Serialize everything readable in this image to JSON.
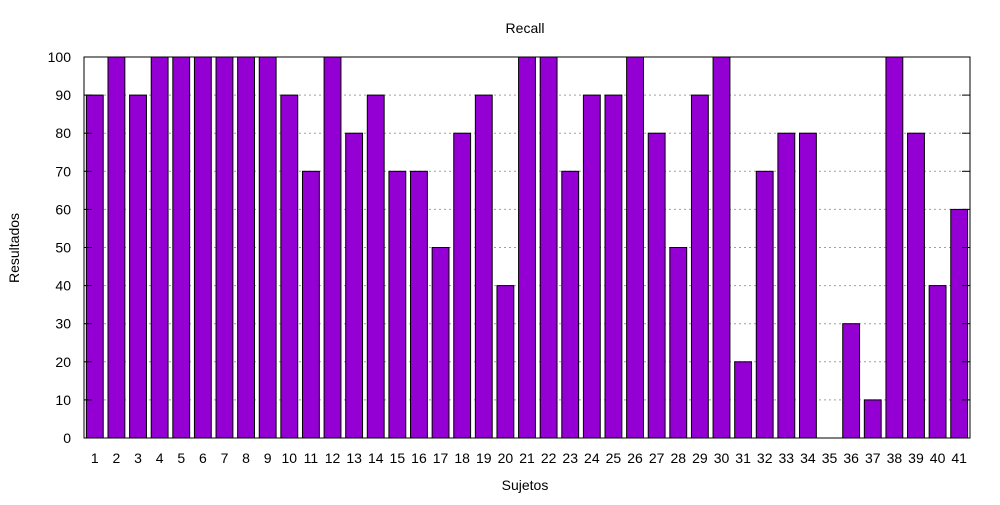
{
  "chart_data": {
    "type": "bar",
    "title": "Recall",
    "xlabel": "Sujetos",
    "ylabel": "Resultados",
    "categories": [
      "1",
      "2",
      "3",
      "4",
      "5",
      "6",
      "7",
      "8",
      "9",
      "10",
      "11",
      "12",
      "13",
      "14",
      "15",
      "16",
      "17",
      "18",
      "19",
      "20",
      "21",
      "22",
      "23",
      "24",
      "25",
      "26",
      "27",
      "28",
      "29",
      "30",
      "31",
      "32",
      "33",
      "34",
      "35",
      "36",
      "37",
      "38",
      "39",
      "40",
      "41"
    ],
    "values": [
      90,
      100,
      90,
      100,
      100,
      100,
      100,
      100,
      100,
      90,
      70,
      100,
      80,
      90,
      70,
      70,
      50,
      80,
      90,
      40,
      100,
      100,
      70,
      90,
      90,
      100,
      80,
      50,
      90,
      100,
      20,
      70,
      80,
      80,
      0,
      30,
      10,
      100,
      80,
      40,
      60
    ],
    "ylim": [
      0,
      100
    ],
    "yticks": [
      0,
      10,
      20,
      30,
      40,
      50,
      60,
      70,
      80,
      90,
      100
    ],
    "grid": true,
    "bar_color": "#9400d3",
    "bar_edge_color": "#000000",
    "grid_color": "#a0a0a0"
  }
}
